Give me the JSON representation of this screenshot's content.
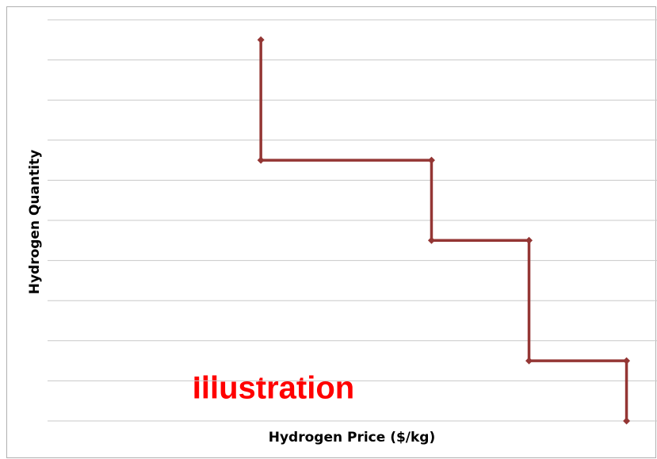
{
  "chart_data": {
    "type": "line",
    "x_label": "Hydrogen Price ($/kg)",
    "y_label": "Hydrogen Quantity",
    "annotation": "Illustration",
    "x": [
      3.5,
      3.5,
      6.3,
      6.3,
      7.9,
      7.9,
      9.5,
      9.5
    ],
    "values": [
      9.5,
      6.5,
      6.5,
      4.5,
      4.5,
      1.5,
      1.5,
      0
    ],
    "color": "#943634",
    "xlim": [
      0,
      10
    ],
    "ylim": [
      0,
      10
    ],
    "yticks": [
      0,
      1,
      2,
      3,
      4,
      5,
      6,
      7,
      8,
      9,
      10
    ],
    "grid": true
  }
}
